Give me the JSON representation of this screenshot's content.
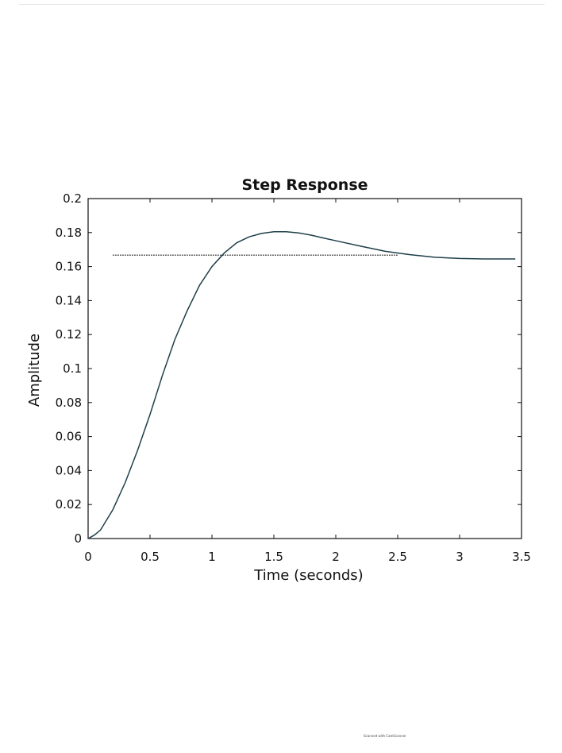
{
  "chart_data": {
    "type": "line",
    "title": "Step Response",
    "xlabel": "Time (seconds)",
    "ylabel": "Amplitude",
    "xlim": [
      0,
      3.5
    ],
    "ylim": [
      0,
      0.2
    ],
    "xticks": [
      "0",
      "0.5",
      "1",
      "1.5",
      "2",
      "2.5",
      "3",
      "3.5"
    ],
    "yticks": [
      "0",
      "0.02",
      "0.04",
      "0.06",
      "0.08",
      "0.1",
      "0.12",
      "0.14",
      "0.16",
      "0.18",
      "0.2"
    ],
    "grid": false,
    "series": [
      {
        "color": "#1f3f4a",
        "x": [
          0,
          0.05,
          0.1,
          0.2,
          0.3,
          0.4,
          0.5,
          0.6,
          0.7,
          0.8,
          0.9,
          1.0,
          1.1,
          1.2,
          1.3,
          1.4,
          1.5,
          1.6,
          1.7,
          1.8,
          1.9,
          2.0,
          2.2,
          2.4,
          2.6,
          2.8,
          3.0,
          3.2,
          3.45
        ],
        "y": [
          0,
          0.002,
          0.005,
          0.017,
          0.033,
          0.052,
          0.073,
          0.096,
          0.117,
          0.134,
          0.149,
          0.16,
          0.168,
          0.174,
          0.1775,
          0.1795,
          0.1805,
          0.1805,
          0.1798,
          0.1785,
          0.1768,
          0.1752,
          0.172,
          0.169,
          0.167,
          0.1655,
          0.1648,
          0.1645,
          0.1645
        ]
      }
    ],
    "reference_line": {
      "style": "dotted",
      "color": "#333333",
      "x": [
        0.2,
        2.5
      ],
      "y": 0.1667
    }
  },
  "footer_text": "Scanned with CamScanner"
}
